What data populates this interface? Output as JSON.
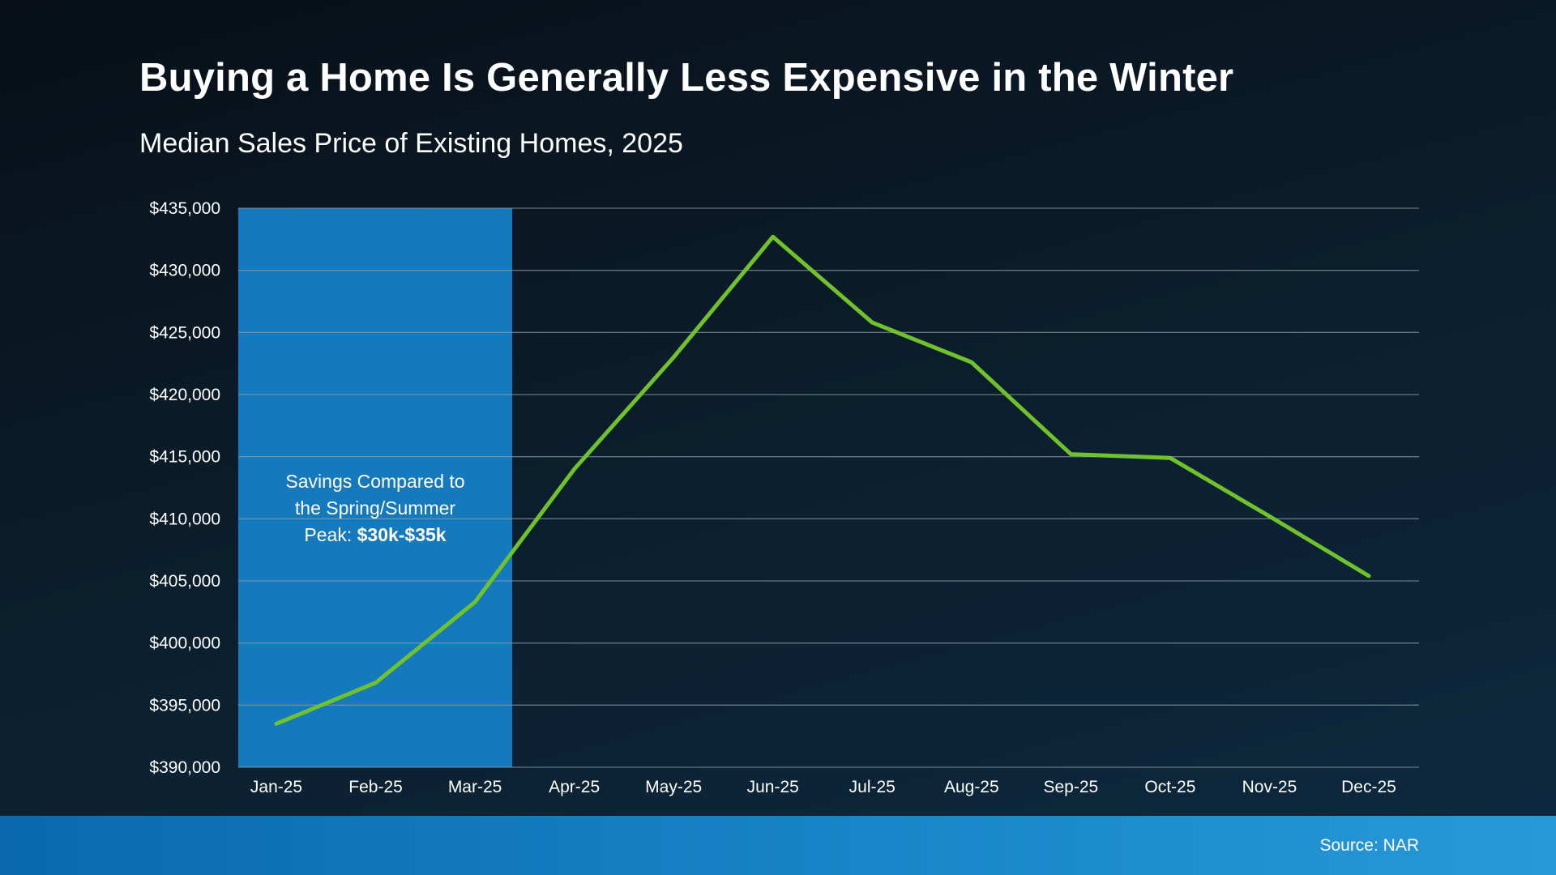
{
  "page": {
    "title": "Buying a Home Is Generally Less Expensive in the Winter",
    "subtitle": "Median Sales Price of Existing Homes, 2025",
    "source": "Source: NAR"
  },
  "colors": {
    "line": "#6fc22b",
    "highlight": "#1479bd",
    "gridline": "#8d99a3",
    "text": "#ffffff",
    "footer_left": "#0a69ae",
    "footer_right": "#2899d8"
  },
  "chart_data": {
    "type": "line",
    "title": "Median Sales Price of Existing Homes, 2025",
    "xlabel": "",
    "ylabel": "",
    "grid": true,
    "legend_position": "none",
    "x": [
      "Jan-25",
      "Feb-25",
      "Mar-25",
      "Apr-25",
      "May-25",
      "Jun-25",
      "Jul-25",
      "Aug-25",
      "Sep-25",
      "Oct-25",
      "Nov-25",
      "Dec-25"
    ],
    "values": [
      393500,
      396800,
      403300,
      414000,
      423000,
      432700,
      425800,
      422600,
      415200,
      414900,
      410200,
      405400
    ],
    "ylim": [
      390000,
      435000
    ],
    "ytick_step": 5000,
    "ytick_labels": [
      "$390,000",
      "$395,000",
      "$400,000",
      "$405,000",
      "$410,000",
      "$415,000",
      "$420,000",
      "$425,000",
      "$430,000",
      "$435,000"
    ],
    "highlight_region": {
      "months": [
        "Jan-25",
        "Feb-25",
        "Mar-25"
      ],
      "label_line1": "Savings Compared to",
      "label_line2": "the Spring/Summer",
      "label_line3_prefix": "Peak: ",
      "label_line3_bold": "$30k-$35k"
    }
  }
}
